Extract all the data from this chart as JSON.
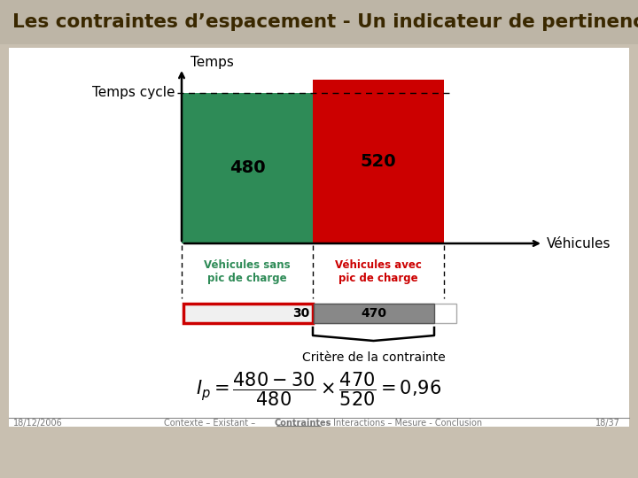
{
  "title": "Les contraintes d’espacement - Un indicateur de pertinence",
  "title_color": "#3a2800",
  "bg_color": "#c8bfb0",
  "content_bg": "#ffffff",
  "bar1_value": 480,
  "bar2_value": 520,
  "bar1_color": "#2e8b57",
  "bar2_color": "#cc0000",
  "bar1_label": "480",
  "bar2_label": "520",
  "bar1_x_label": "Véhicules sans\npic de charge",
  "bar2_x_label": "Véhicules avec\npic de charge",
  "bar1_xlabel_color": "#2e8b57",
  "bar2_xlabel_color": "#cc0000",
  "temps_cycle_label": "Temps cycle",
  "temps_label": "Temps",
  "vehicules_label": "Véhicules",
  "bottom_left_box_border": "#cc0000",
  "val_30": "30",
  "val_470": "470",
  "critere_label": "Critère de la contrainte",
  "footer_left": "18/12/2006",
  "footer_right": "18/37"
}
